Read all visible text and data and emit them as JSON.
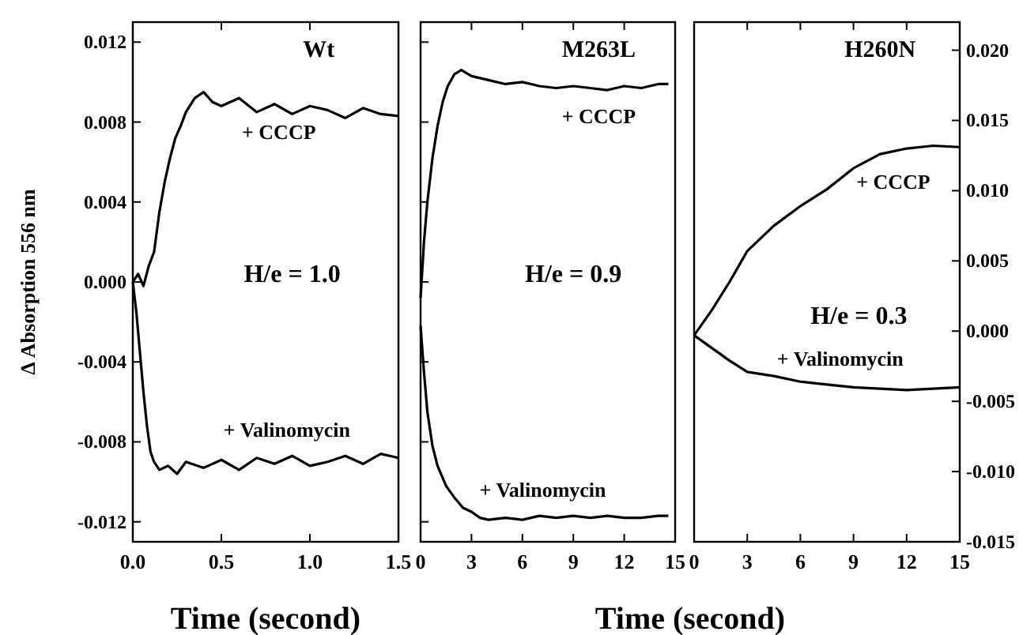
{
  "chart_data": [
    {
      "type": "line",
      "title": "Wt",
      "xlabel": "Time (second)",
      "ylabel": "Δ Absorption 556 nm",
      "annotations": [
        "H/e = 1.0"
      ],
      "xlim": [
        0,
        1.5
      ],
      "xticks": [
        {
          "value": 0,
          "label": "0.0"
        },
        0.5,
        {
          "value": 1,
          "label": "1.0"
        },
        1.5
      ],
      "ylim": [
        -0.013,
        0.013
      ],
      "yticks": [
        {
          "value": -0.012,
          "label": "-0.012"
        },
        {
          "value": -0.008,
          "label": "-0.008"
        },
        {
          "value": -0.004,
          "label": "-0.004"
        },
        {
          "value": 0,
          "label": "0.000"
        },
        0.004,
        0.008,
        0.012
      ],
      "series": [
        {
          "name": "+ CCCP",
          "color": "#000000",
          "x": [
            0,
            0.03,
            0.06,
            0.09,
            0.12,
            0.15,
            0.18,
            0.21,
            0.24,
            0.27,
            0.3,
            0.35,
            0.4,
            0.45,
            0.5,
            0.6,
            0.7,
            0.8,
            0.9,
            1.0,
            1.1,
            1.2,
            1.3,
            1.4,
            1.5
          ],
          "values": [
            0,
            0.0004,
            -0.0002,
            0.0008,
            0.0015,
            0.0035,
            0.005,
            0.0062,
            0.0072,
            0.0078,
            0.0085,
            0.0092,
            0.0095,
            0.009,
            0.0088,
            0.0092,
            0.0085,
            0.0089,
            0.0084,
            0.0088,
            0.0086,
            0.0082,
            0.0087,
            0.0084,
            0.0083
          ]
        },
        {
          "name": "+ Valinomycin",
          "color": "#000000",
          "x": [
            0,
            0.02,
            0.04,
            0.06,
            0.08,
            0.1,
            0.12,
            0.15,
            0.2,
            0.25,
            0.3,
            0.4,
            0.5,
            0.6,
            0.7,
            0.8,
            0.9,
            1.0,
            1.1,
            1.2,
            1.3,
            1.4,
            1.5
          ],
          "values": [
            0,
            -0.0015,
            -0.0035,
            -0.0055,
            -0.0072,
            -0.0085,
            -0.009,
            -0.0094,
            -0.0092,
            -0.0096,
            -0.009,
            -0.0093,
            -0.0089,
            -0.0094,
            -0.0088,
            -0.0091,
            -0.0087,
            -0.0092,
            -0.009,
            -0.0087,
            -0.0091,
            -0.0086,
            -0.0088
          ]
        }
      ]
    },
    {
      "type": "line",
      "title": "M263L",
      "xlabel": "Time (second)",
      "annotations": [
        "H/e = 0.9"
      ],
      "xlim": [
        0,
        15
      ],
      "xticks": [
        0,
        3,
        6,
        9,
        12,
        15
      ],
      "ylim": [
        -0.013,
        0.013
      ],
      "yticks": [
        {
          "value": -0.012,
          "label": null
        },
        {
          "value": -0.008,
          "label": null
        },
        {
          "value": -0.004,
          "label": null
        },
        {
          "value": 0,
          "label": null
        },
        {
          "value": 0.004,
          "label": null
        },
        {
          "value": 0.008,
          "label": null
        },
        {
          "value": 0.012,
          "label": null
        }
      ],
      "tick_labels": "x",
      "series": [
        {
          "name": "+ CCCP",
          "color": "#000000",
          "x": [
            0,
            0.2,
            0.4,
            0.7,
            1.0,
            1.3,
            1.6,
            2.0,
            2.4,
            3,
            4,
            5,
            6,
            7,
            8,
            9,
            10,
            11,
            12,
            13,
            14,
            14.6
          ],
          "values": [
            -0.0008,
            0.002,
            0.004,
            0.0062,
            0.0078,
            0.009,
            0.0098,
            0.0104,
            0.0106,
            0.0103,
            0.0101,
            0.0099,
            0.01,
            0.0098,
            0.0097,
            0.0098,
            0.0097,
            0.0096,
            0.0098,
            0.0097,
            0.0099,
            0.0099
          ]
        },
        {
          "name": "+ Valinomycin",
          "color": "#000000",
          "x": [
            0,
            0.2,
            0.4,
            0.7,
            1.0,
            1.5,
            2.0,
            2.5,
            3,
            3.5,
            4,
            5,
            6,
            7,
            8,
            9,
            10,
            11,
            12,
            13,
            14,
            14.6
          ],
          "values": [
            -0.0022,
            -0.0045,
            -0.0065,
            -0.0082,
            -0.0092,
            -0.0102,
            -0.0108,
            -0.0113,
            -0.0115,
            -0.0118,
            -0.0119,
            -0.0118,
            -0.0119,
            -0.0117,
            -0.0118,
            -0.0117,
            -0.0118,
            -0.0117,
            -0.0118,
            -0.0118,
            -0.0117,
            -0.0117
          ]
        }
      ]
    },
    {
      "type": "line",
      "title": "H260N",
      "annotations": [
        "H/e = 0.3"
      ],
      "xlim": [
        0,
        15
      ],
      "xticks": [
        0,
        3,
        6,
        9,
        12,
        15
      ],
      "y2lim": [
        -0.015,
        0.022
      ],
      "y2ticks": [
        {
          "value": -0.015,
          "label": "-0.015"
        },
        {
          "value": -0.01,
          "label": "-0.010"
        },
        {
          "value": -0.005,
          "label": "-0.005"
        },
        {
          "value": 0,
          "label": "0.000"
        },
        {
          "value": 0.005,
          "label": "0.005"
        },
        {
          "value": 0.01,
          "label": "0.010"
        },
        {
          "value": 0.015,
          "label": "0.015"
        },
        {
          "value": 0.02,
          "label": "0.020"
        }
      ],
      "series": [
        {
          "name": "+ CCCP",
          "color": "#000000",
          "axis": "y2",
          "x": [
            0,
            1,
            2,
            3,
            4.5,
            6,
            7.5,
            9,
            10.5,
            12,
            13.5,
            15
          ],
          "values": [
            -0.0003,
            0.0015,
            0.0035,
            0.0057,
            0.0075,
            0.0089,
            0.0101,
            0.0116,
            0.0126,
            0.013,
            0.0132,
            0.0131
          ]
        },
        {
          "name": "+ Valinomycin",
          "color": "#000000",
          "axis": "y2",
          "x": [
            0,
            1,
            2,
            3,
            4.5,
            6,
            7.5,
            9,
            10.5,
            12,
            13.5,
            15
          ],
          "values": [
            -0.0003,
            -0.0012,
            -0.0021,
            -0.0029,
            -0.0032,
            -0.0036,
            -0.0038,
            -0.004,
            -0.0041,
            -0.0042,
            -0.0041,
            -0.004
          ]
        }
      ]
    }
  ]
}
